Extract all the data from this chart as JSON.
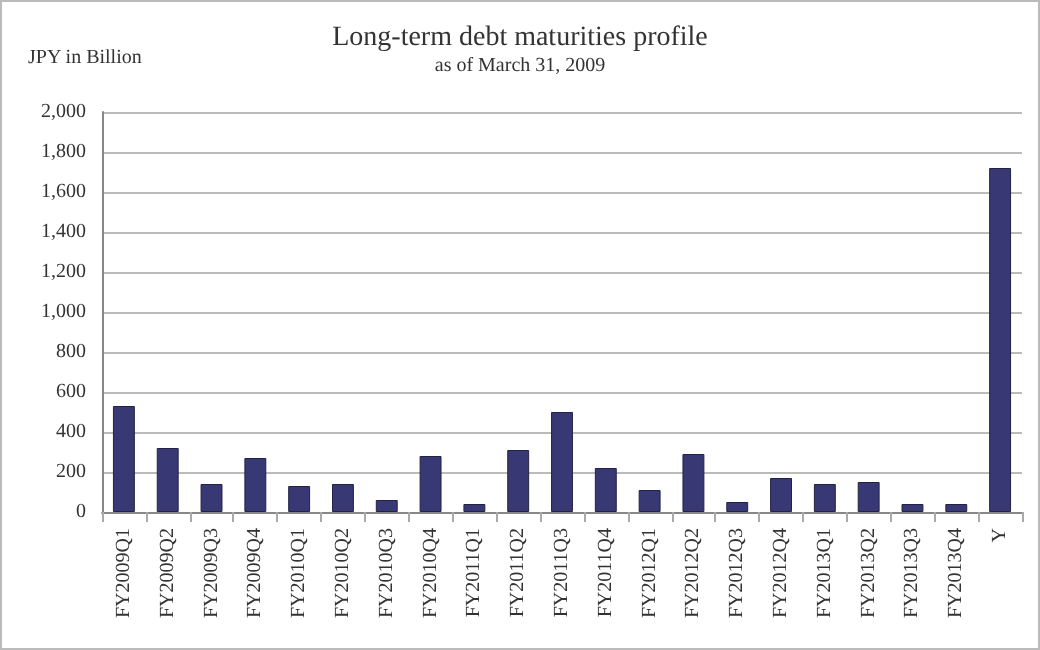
{
  "chart_data": {
    "type": "bar",
    "title": "Long-term debt maturities profile",
    "subtitle": "as of March 31, 2009",
    "ylabel": "JPY in Billion",
    "categories": [
      "FY2009Q1",
      "FY2009Q2",
      "FY2009Q3",
      "FY2009Q4",
      "FY2010Q1",
      "FY2010Q2",
      "FY2010Q3",
      "FY2010Q4",
      "FY2011Q1",
      "FY2011Q2",
      "FY2011Q3",
      "FY2011Q4",
      "FY2012Q1",
      "FY2012Q2",
      "FY2012Q3",
      "FY2012Q4",
      "FY2013Q1",
      "FY2013Q2",
      "FY2013Q3",
      "FY2013Q4",
      "Y"
    ],
    "values": [
      530,
      320,
      140,
      270,
      130,
      140,
      60,
      280,
      40,
      310,
      500,
      220,
      110,
      290,
      50,
      170,
      140,
      150,
      40,
      40,
      1720
    ],
    "color": "#383874",
    "ylim": [
      0,
      2000
    ],
    "yticks": [
      0,
      200,
      400,
      600,
      800,
      {
        "value": 1000,
        "label": "1,000"
      },
      {
        "value": 1200,
        "label": "1,200"
      },
      {
        "value": 1400,
        "label": "1,400"
      },
      {
        "value": 1600,
        "label": "1,600"
      },
      {
        "value": 1800,
        "label": "1,800"
      },
      {
        "value": 2000,
        "label": "2,000"
      }
    ],
    "grid": "y"
  }
}
